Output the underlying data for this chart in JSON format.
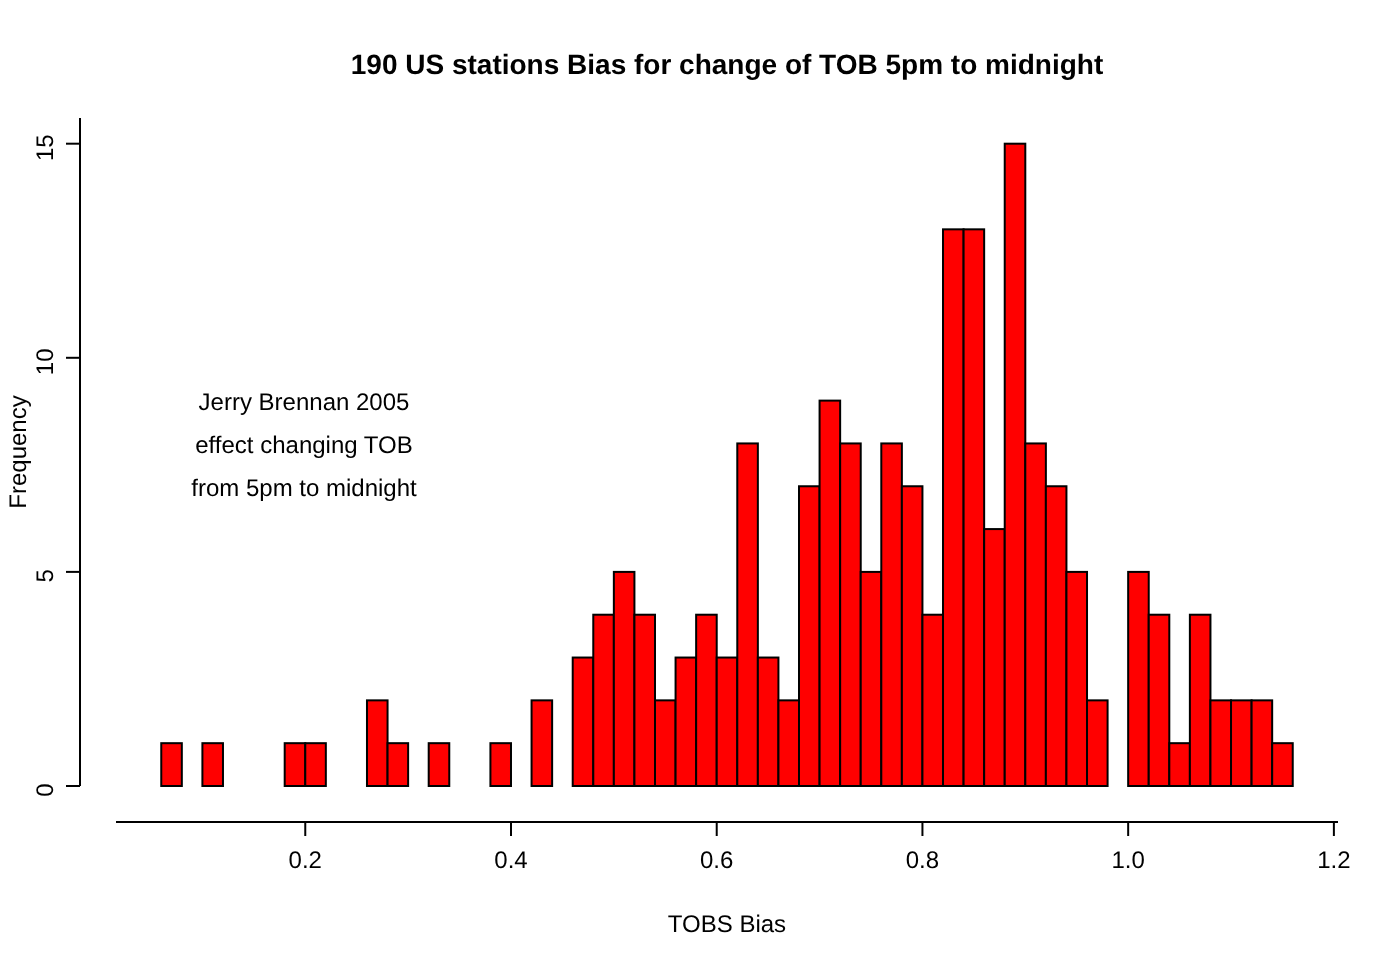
{
  "chart_data": {
    "type": "histogram",
    "title": "190 US stations Bias for change of TOB 5pm to midnight",
    "xlabel": "TOBS Bias",
    "ylabel": "Frequency",
    "bins": [
      0.06,
      0.08,
      0.1,
      0.12,
      0.14,
      0.16,
      0.18,
      0.2,
      0.22,
      0.24,
      0.26,
      0.28,
      0.3,
      0.32,
      0.34,
      0.36,
      0.38,
      0.4,
      0.42,
      0.44,
      0.46,
      0.48,
      0.5,
      0.52,
      0.54,
      0.56,
      0.58,
      0.6,
      0.62,
      0.64,
      0.66,
      0.68,
      0.7,
      0.72,
      0.74,
      0.76,
      0.78,
      0.8,
      0.82,
      0.84,
      0.86,
      0.88,
      0.9,
      0.92,
      0.94,
      0.96,
      0.98,
      1.0,
      1.02,
      1.04,
      1.06,
      1.08,
      1.1,
      1.12,
      1.14,
      1.16
    ],
    "values": [
      1,
      0,
      1,
      0,
      0,
      0,
      1,
      1,
      0,
      0,
      2,
      1,
      0,
      1,
      0,
      0,
      1,
      0,
      2,
      0,
      3,
      4,
      5,
      4,
      2,
      3,
      4,
      3,
      8,
      3,
      2,
      7,
      9,
      8,
      5,
      8,
      7,
      4,
      13,
      13,
      6,
      15,
      8,
      7,
      5,
      2,
      0,
      5,
      4,
      1,
      4,
      2,
      2,
      2,
      1
    ],
    "color": "#ff0000",
    "xlim": [
      0.016,
      1.204
    ],
    "xticks": [
      {
        "value": 0.2,
        "label": "0.2"
      },
      {
        "value": 0.4,
        "label": "0.4"
      },
      {
        "value": 0.6,
        "label": "0.6"
      },
      {
        "value": 0.8,
        "label": "0.8"
      },
      {
        "value": 1.0,
        "label": "1.0"
      },
      {
        "value": 1.2,
        "label": "1.2"
      }
    ],
    "ylim": [
      0,
      15.6
    ],
    "yticks": [
      0,
      5,
      10,
      15
    ],
    "annotations": [
      "Jerry Brennan 2005",
      "effect changing TOB",
      "from 5pm to midnight"
    ]
  }
}
